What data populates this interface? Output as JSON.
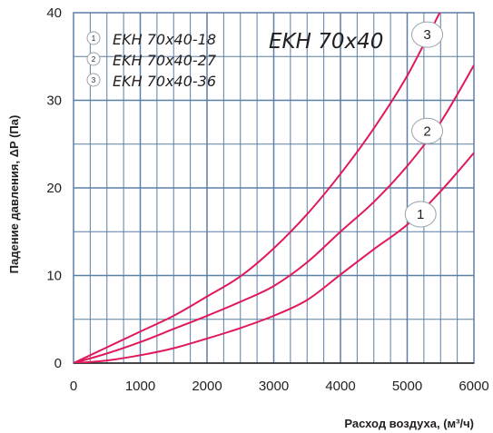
{
  "chart_data": {
    "type": "line",
    "title": "EKH 70x40",
    "xlabel": "Расход воздуха, (м³/ч)",
    "ylabel": "Падение давления, ΔP (Па)",
    "xlim": [
      0,
      6000
    ],
    "ylim": [
      0,
      40
    ],
    "x_ticks": [
      "0",
      "1000",
      "2000",
      "3000",
      "4000",
      "5000",
      "6000"
    ],
    "y_ticks": [
      "0",
      "10",
      "20",
      "30",
      "40"
    ],
    "grid": true,
    "legend_position": "top-left",
    "line_color": "#e01a5a",
    "grid_color": "#5b7fa6",
    "series": [
      {
        "name": "EKH 70x40-18",
        "label": "1",
        "points": [
          [
            0,
            0
          ],
          [
            500,
            0.3
          ],
          [
            1000,
            0.9
          ],
          [
            1500,
            1.7
          ],
          [
            2000,
            2.8
          ],
          [
            2500,
            4.0
          ],
          [
            3000,
            5.4
          ],
          [
            3500,
            7.2
          ],
          [
            4000,
            10.1
          ],
          [
            4500,
            13.0
          ],
          [
            5000,
            15.8
          ],
          [
            5500,
            19.6
          ],
          [
            6000,
            24.0
          ]
        ]
      },
      {
        "name": "EKH 70x40-27",
        "label": "2",
        "points": [
          [
            0,
            0
          ],
          [
            500,
            1.1
          ],
          [
            1000,
            2.4
          ],
          [
            1500,
            3.9
          ],
          [
            2000,
            5.4
          ],
          [
            2500,
            7.0
          ],
          [
            3000,
            8.8
          ],
          [
            3500,
            11.5
          ],
          [
            4000,
            15.0
          ],
          [
            4500,
            18.4
          ],
          [
            5000,
            22.5
          ],
          [
            5500,
            27.5
          ],
          [
            6000,
            34.0
          ]
        ]
      },
      {
        "name": "EKH 70x40-36",
        "label": "3",
        "points": [
          [
            0,
            0
          ],
          [
            500,
            1.8
          ],
          [
            1000,
            3.6
          ],
          [
            1500,
            5.4
          ],
          [
            2000,
            7.6
          ],
          [
            2500,
            9.9
          ],
          [
            3000,
            13.1
          ],
          [
            3500,
            17.0
          ],
          [
            4000,
            21.6
          ],
          [
            4500,
            26.8
          ],
          [
            5000,
            32.8
          ],
          [
            5500,
            40.2
          ]
        ]
      }
    ]
  }
}
